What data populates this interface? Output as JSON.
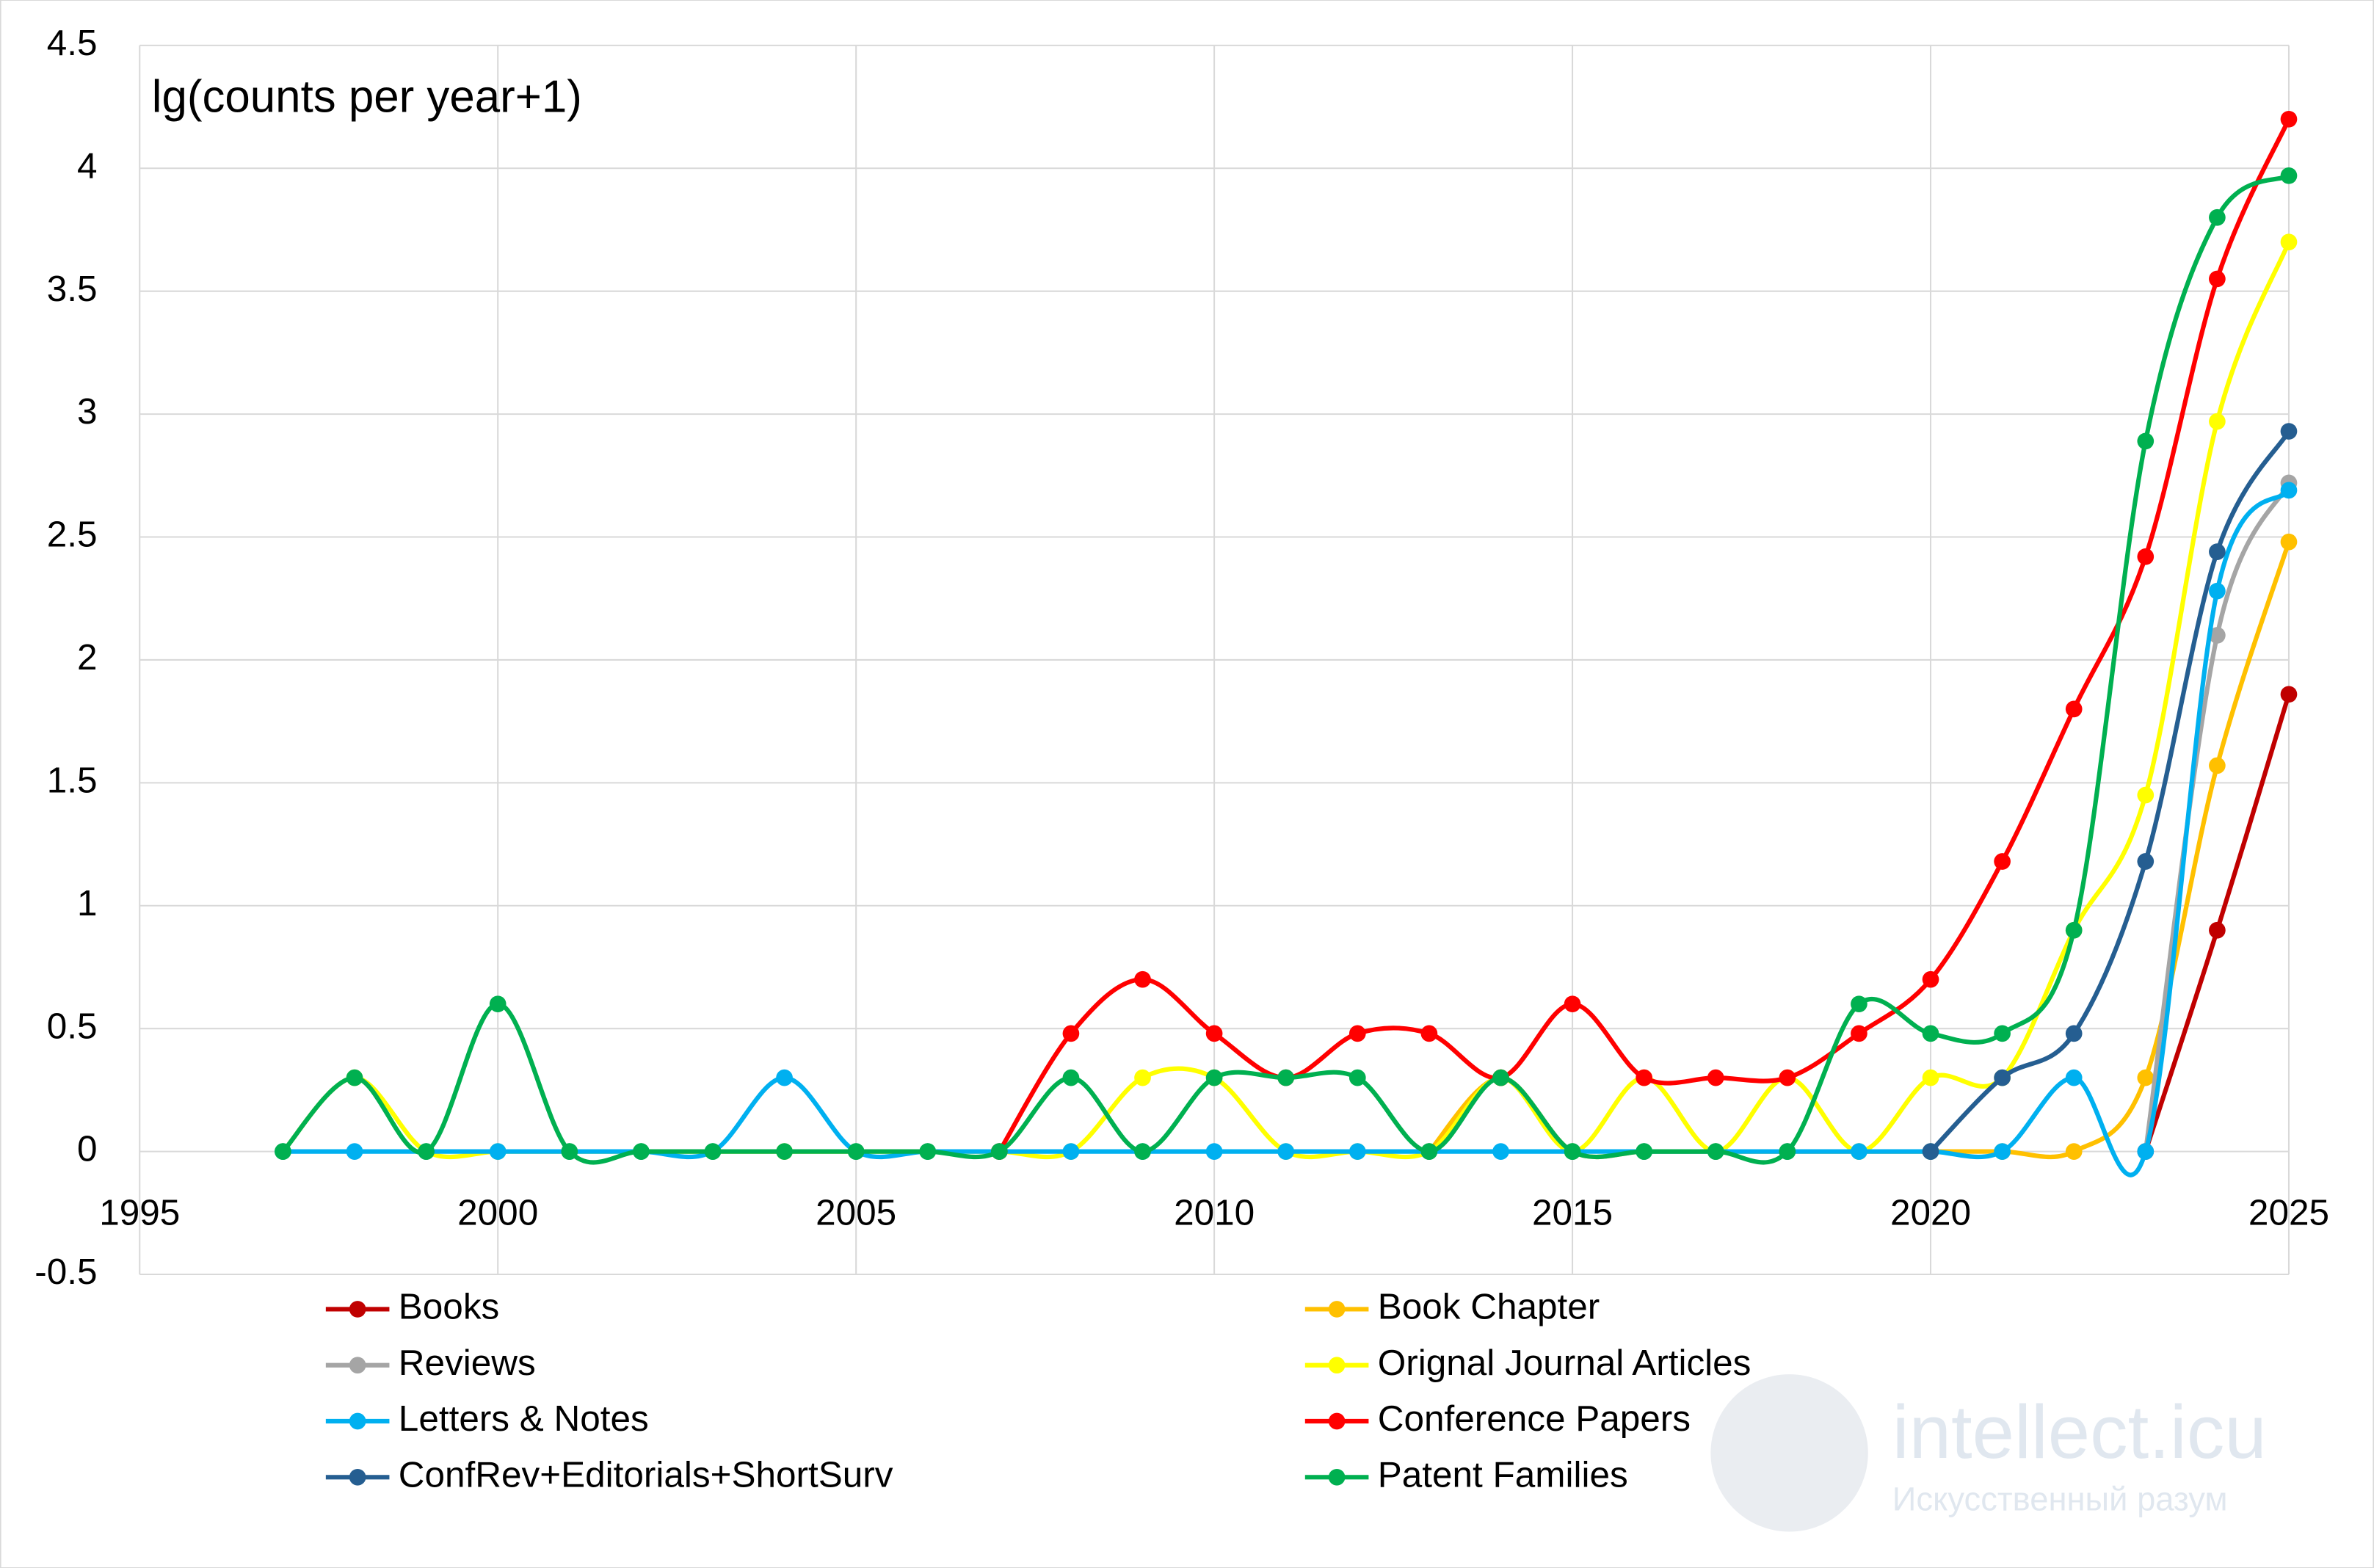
{
  "chart_data": {
    "type": "line",
    "annotation": "lg(counts per year+1)",
    "x": [
      1997,
      1998,
      1999,
      2000,
      2001,
      2002,
      2003,
      2004,
      2005,
      2006,
      2007,
      2008,
      2009,
      2010,
      2011,
      2012,
      2013,
      2014,
      2015,
      2016,
      2017,
      2018,
      2019,
      2020,
      2021,
      2022,
      2023,
      2024,
      2025
    ],
    "series": [
      {
        "name": "Books",
        "color": "#c00000",
        "values": [
          null,
          null,
          null,
          null,
          null,
          null,
          null,
          null,
          null,
          null,
          null,
          null,
          null,
          null,
          null,
          null,
          null,
          null,
          null,
          null,
          null,
          null,
          null,
          null,
          null,
          null,
          0,
          0.9,
          1.86
        ]
      },
      {
        "name": "Book Chapter",
        "color": "#ffc000",
        "values": [
          null,
          null,
          null,
          null,
          null,
          null,
          null,
          null,
          null,
          null,
          null,
          null,
          null,
          null,
          null,
          null,
          0,
          0.3,
          0,
          0,
          0,
          0,
          0,
          0,
          0,
          0,
          0.3,
          1.57,
          2.48
        ]
      },
      {
        "name": "Reviews",
        "color": "#a5a5a5",
        "values": [
          null,
          null,
          null,
          null,
          null,
          null,
          null,
          null,
          null,
          null,
          null,
          null,
          null,
          null,
          null,
          null,
          null,
          null,
          null,
          null,
          null,
          null,
          null,
          null,
          null,
          null,
          0,
          2.1,
          2.72
        ]
      },
      {
        "name": "Orignal Journal Articles",
        "color": "#ffff00",
        "values": [
          0,
          0.3,
          0,
          0,
          0,
          0,
          0,
          0,
          0,
          0,
          0,
          0,
          0.3,
          0.3,
          0,
          0,
          0,
          0.3,
          0,
          0.3,
          0,
          0.3,
          0,
          0.3,
          0.3,
          0.9,
          1.45,
          2.97,
          3.7
        ]
      },
      {
        "name": "Letters & Notes",
        "color": "#00b0f0",
        "values": [
          0,
          0,
          0,
          0,
          0,
          0,
          0,
          0.3,
          0,
          0,
          0,
          0,
          0,
          0,
          0,
          0,
          0,
          0,
          0,
          0,
          0,
          0,
          0,
          0,
          0,
          0.3,
          0,
          2.28,
          2.69
        ]
      },
      {
        "name": "Conference Papers",
        "color": "#ff0000",
        "values": [
          null,
          null,
          null,
          null,
          null,
          null,
          null,
          null,
          null,
          null,
          0,
          0.48,
          0.7,
          0.48,
          0.3,
          0.48,
          0.48,
          0.3,
          0.6,
          0.3,
          0.3,
          0.3,
          0.48,
          0.7,
          1.18,
          1.8,
          2.42,
          3.55,
          4.2
        ]
      },
      {
        "name": "ConfRev+Editorials+ShortSurv",
        "color": "#255e91",
        "values": [
          null,
          null,
          null,
          null,
          null,
          null,
          null,
          null,
          null,
          null,
          null,
          null,
          null,
          null,
          null,
          null,
          null,
          null,
          null,
          null,
          null,
          null,
          null,
          0,
          0.3,
          0.48,
          1.18,
          2.44,
          2.93
        ]
      },
      {
        "name": "Patent Families",
        "color": "#00b050",
        "values": [
          0,
          0.3,
          0,
          0.6,
          0,
          0,
          0,
          0,
          0,
          0,
          0,
          0.3,
          0,
          0.3,
          0.3,
          0.3,
          0,
          0.3,
          0,
          0,
          0,
          0,
          0.6,
          0.48,
          0.48,
          0.9,
          2.89,
          3.8,
          3.97
        ]
      }
    ],
    "xlim": [
      1995,
      2025
    ],
    "xticks": [
      1995,
      2000,
      2005,
      2010,
      2015,
      2020,
      2025
    ],
    "ylim": [
      -0.5,
      4.5
    ],
    "yticks": [
      -0.5,
      0,
      0.5,
      1,
      1.5,
      2,
      2.5,
      3,
      3.5,
      4,
      4.5
    ],
    "grid": true,
    "smooth": true,
    "legend": "bottom"
  },
  "watermark": {
    "text": "intellect.icu",
    "subtitle": "Искусственный разум"
  }
}
